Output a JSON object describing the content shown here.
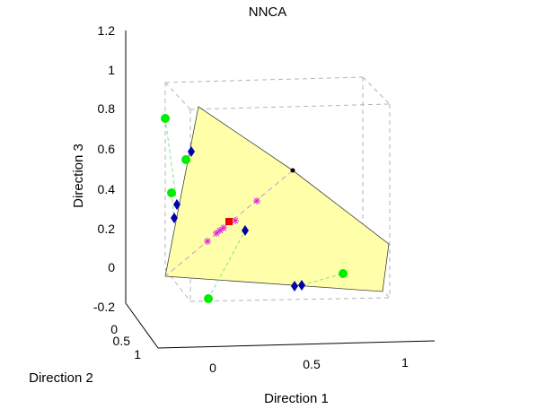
{
  "chart_data": {
    "type": "scatter",
    "projection": "3d",
    "title": "NNCA",
    "xlabel": "Direction 1",
    "ylabel": "Direction 2",
    "zlabel": "Direction 3",
    "xlim": [
      -0.2,
      1.2
    ],
    "ylim": [
      0,
      1
    ],
    "zlim": [
      -0.2,
      1.2
    ],
    "x_ticks": [
      "0",
      "0.5",
      "1"
    ],
    "y_ticks": [
      "0",
      "0.5",
      "1"
    ],
    "z_ticks": [
      "-0.2",
      "0",
      "0.2",
      "0.4",
      "0.6",
      "0.8",
      "1",
      "1.2"
    ],
    "grid": false,
    "colors": {
      "surface_fill": "#ffffaa",
      "surface_edge": "#404040",
      "green_marker": "#00ee00",
      "blue_marker": "#0000aa",
      "magenta_marker": "#dd22dd",
      "red_marker": "#ee0000",
      "box_lines": "#b0b0b0",
      "connector_lines": "#88dd88"
    },
    "series": [
      {
        "marker": "green-circle"
      },
      {
        "marker": "blue-diamond"
      },
      {
        "marker": "magenta-asterisk"
      },
      {
        "marker": "red-square"
      },
      {
        "marker": "black-dot"
      }
    ]
  }
}
